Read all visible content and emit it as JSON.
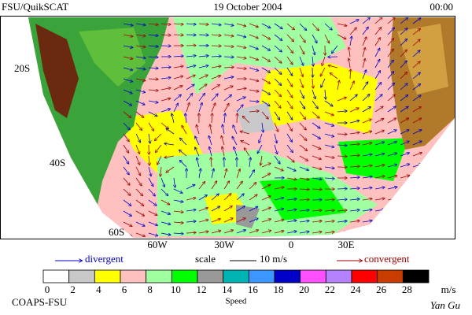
{
  "header": {
    "title": "FSU/QuikSCAT",
    "date": "19 October 2004",
    "time": "00:00"
  },
  "map": {
    "lat_labels": [
      "20S",
      "40S",
      "60S"
    ],
    "lon_labels": [
      "60W",
      "30W",
      "0",
      "30E"
    ]
  },
  "legend": {
    "divergent": "divergent",
    "scale": "scale",
    "scale_value": "10 m/s",
    "convergent": "convergent"
  },
  "colorbar": {
    "ticks": [
      0,
      2,
      4,
      6,
      8,
      10,
      12,
      14,
      16,
      18,
      20,
      22,
      24,
      26,
      28
    ],
    "unit": "m/s",
    "label": "Speed",
    "colors": [
      "#ffffff",
      "#c8c8c8",
      "#ffff00",
      "#ffc0c0",
      "#a0ffa0",
      "#00ff00",
      "#999999",
      "#00b4b4",
      "#3c96ff",
      "#0000c8",
      "#ff50ff",
      "#b482ff",
      "#ff0000",
      "#c83c00",
      "#000000"
    ]
  },
  "footer": {
    "credit": "COAPS-FSU",
    "author": "Yan Gu"
  }
}
